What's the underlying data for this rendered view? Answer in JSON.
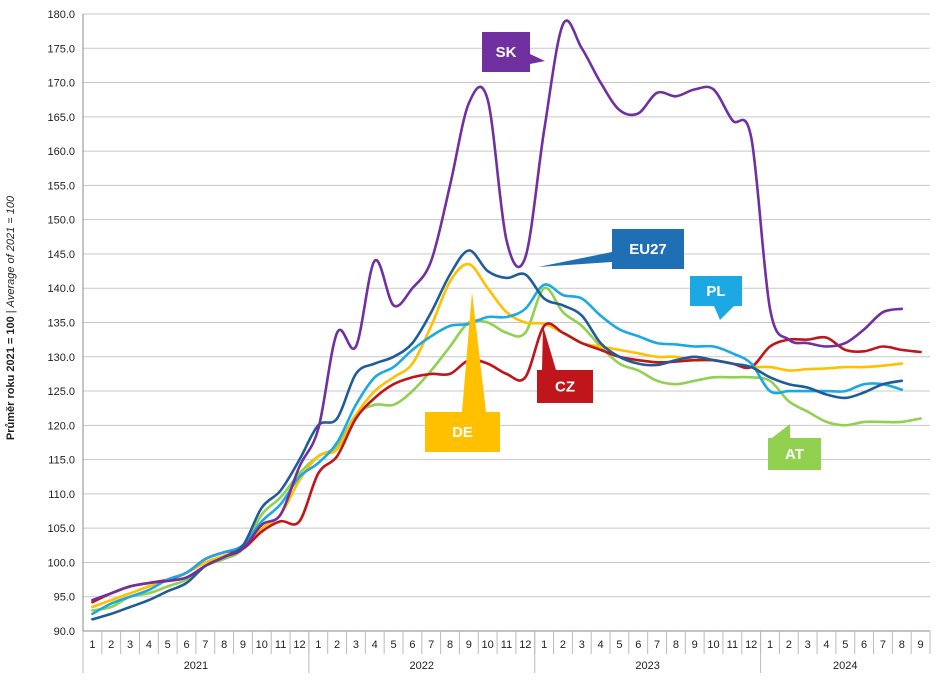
{
  "chart_data": {
    "type": "line",
    "ylabel_bold": "Průměr roku 2021 = 100",
    "ylabel_sep": " | ",
    "ylabel_italic": "Average of 2021 = 100",
    "ylim": [
      90,
      180
    ],
    "ytick_step": 5,
    "ytick_labels": [
      "90.0",
      "95.0",
      "100.0",
      "105.0",
      "110.0",
      "115.0",
      "120.0",
      "125.0",
      "130.0",
      "135.0",
      "140.0",
      "145.0",
      "150.0",
      "155.0",
      "160.0",
      "165.0",
      "170.0",
      "175.0",
      "180.0"
    ],
    "month_labels": [
      "1",
      "2",
      "3",
      "4",
      "5",
      "6",
      "7",
      "8",
      "9",
      "10",
      "11",
      "12",
      "1",
      "2",
      "3",
      "4",
      "5",
      "6",
      "7",
      "8",
      "9",
      "10",
      "11",
      "12",
      "1",
      "2",
      "3",
      "4",
      "5",
      "6",
      "7",
      "8",
      "9",
      "10",
      "11",
      "12",
      "1",
      "2",
      "3",
      "4",
      "5",
      "6",
      "7",
      "8",
      "9"
    ],
    "year_labels": [
      "2021",
      "2022",
      "2023",
      "2024"
    ],
    "grid": "horizontal",
    "series": [
      {
        "name": "SK",
        "color": "#7030A0",
        "values": [
          94.5,
          95.5,
          96.5,
          97.0,
          97.3,
          97.8,
          99.5,
          100.8,
          102.0,
          105.5,
          107.0,
          114.0,
          119.5,
          133.5,
          131.5,
          144.0,
          137.5,
          140.0,
          144.0,
          155.0,
          167.0,
          167.5,
          147.0,
          144.5,
          163.0,
          178.5,
          175.0,
          170.0,
          166.0,
          165.5,
          168.5,
          168.0,
          169.0,
          169.0,
          164.5,
          162.0,
          137.0,
          132.5,
          132.0,
          131.5,
          132.0,
          134.0,
          136.5,
          137.0
        ]
      },
      {
        "name": "EU27",
        "color": "#1F5C99",
        "values": [
          91.7,
          92.5,
          93.5,
          94.5,
          95.8,
          97.0,
          99.5,
          100.8,
          102.5,
          108.0,
          110.5,
          115.0,
          120.0,
          121.0,
          127.5,
          129.0,
          130.0,
          132.0,
          136.5,
          142.0,
          145.5,
          142.5,
          141.5,
          142.0,
          138.5,
          137.5,
          136.0,
          132.0,
          130.0,
          129.0,
          128.8,
          129.5,
          130.0,
          129.5,
          129.0,
          128.5,
          127.0,
          126.0,
          125.5,
          124.5,
          124.0,
          124.8,
          126.0,
          126.5
        ]
      },
      {
        "name": "PL",
        "color": "#1CA9E3",
        "values": [
          92.5,
          94.0,
          95.0,
          96.0,
          97.5,
          98.5,
          100.5,
          101.5,
          102.5,
          106.0,
          108.5,
          112.5,
          114.5,
          117.5,
          123.0,
          127.0,
          128.5,
          131.0,
          133.0,
          134.5,
          134.8,
          135.8,
          135.8,
          137.0,
          140.5,
          139.0,
          138.5,
          136.0,
          134.0,
          133.0,
          132.0,
          131.8,
          131.5,
          131.5,
          130.5,
          129.0,
          125.0,
          125.0,
          125.0,
          125.0,
          125.0,
          126.0,
          126.0,
          125.2
        ]
      },
      {
        "name": "CZ",
        "color": "#C0161B",
        "values": [
          94.2,
          95.5,
          96.5,
          97.0,
          97.5,
          98.5,
          100.5,
          101.5,
          102.0,
          104.5,
          106.0,
          106.0,
          113.0,
          115.5,
          121.0,
          124.0,
          126.0,
          127.0,
          127.5,
          127.5,
          129.5,
          129.0,
          127.5,
          127.0,
          134.5,
          133.5,
          132.0,
          131.0,
          130.0,
          129.5,
          129.2,
          129.3,
          129.5,
          129.5,
          129.0,
          128.5,
          131.5,
          132.5,
          132.5,
          132.8,
          131.0,
          130.8,
          131.5,
          131.0,
          130.7
        ]
      },
      {
        "name": "DE",
        "color": "#FFC000",
        "values": [
          93.5,
          94.5,
          95.5,
          96.5,
          97.5,
          98.5,
          100.0,
          101.0,
          102.0,
          105.0,
          107.0,
          112.0,
          115.5,
          116.5,
          121.5,
          125.0,
          127.0,
          129.0,
          134.5,
          141.0,
          143.5,
          140.0,
          136.5,
          135.0,
          134.8,
          133.5,
          132.0,
          131.5,
          131.0,
          130.5,
          130.0,
          130.0,
          129.5,
          129.5,
          129.0,
          128.5,
          128.5,
          128.0,
          128.2,
          128.3,
          128.5,
          128.5,
          128.7,
          129.0
        ]
      },
      {
        "name": "AT",
        "color": "#92D050",
        "values": [
          93.0,
          93.5,
          95.0,
          95.5,
          96.5,
          97.5,
          99.5,
          100.5,
          102.0,
          107.0,
          109.5,
          113.0,
          115.5,
          117.0,
          121.5,
          123.0,
          123.0,
          125.0,
          128.0,
          131.5,
          135.0,
          135.0,
          133.5,
          133.5,
          140.0,
          136.5,
          134.5,
          131.5,
          129.0,
          128.0,
          126.5,
          126.0,
          126.5,
          127.0,
          127.0,
          127.0,
          126.5,
          123.5,
          122.0,
          120.5,
          120.0,
          120.5,
          120.5,
          120.5,
          121.0
        ]
      }
    ],
    "callouts": [
      {
        "label": "SK",
        "series": "SK",
        "color": "#7030A0"
      },
      {
        "label": "EU27",
        "series": "EU27",
        "color": "#1F6FB4"
      },
      {
        "label": "PL",
        "series": "PL",
        "color": "#1CA9E3"
      },
      {
        "label": "CZ",
        "series": "CZ",
        "color": "#C0161B"
      },
      {
        "label": "DE",
        "series": "DE",
        "color": "#FFC000"
      },
      {
        "label": "AT",
        "series": "AT",
        "color": "#92D050"
      }
    ]
  }
}
